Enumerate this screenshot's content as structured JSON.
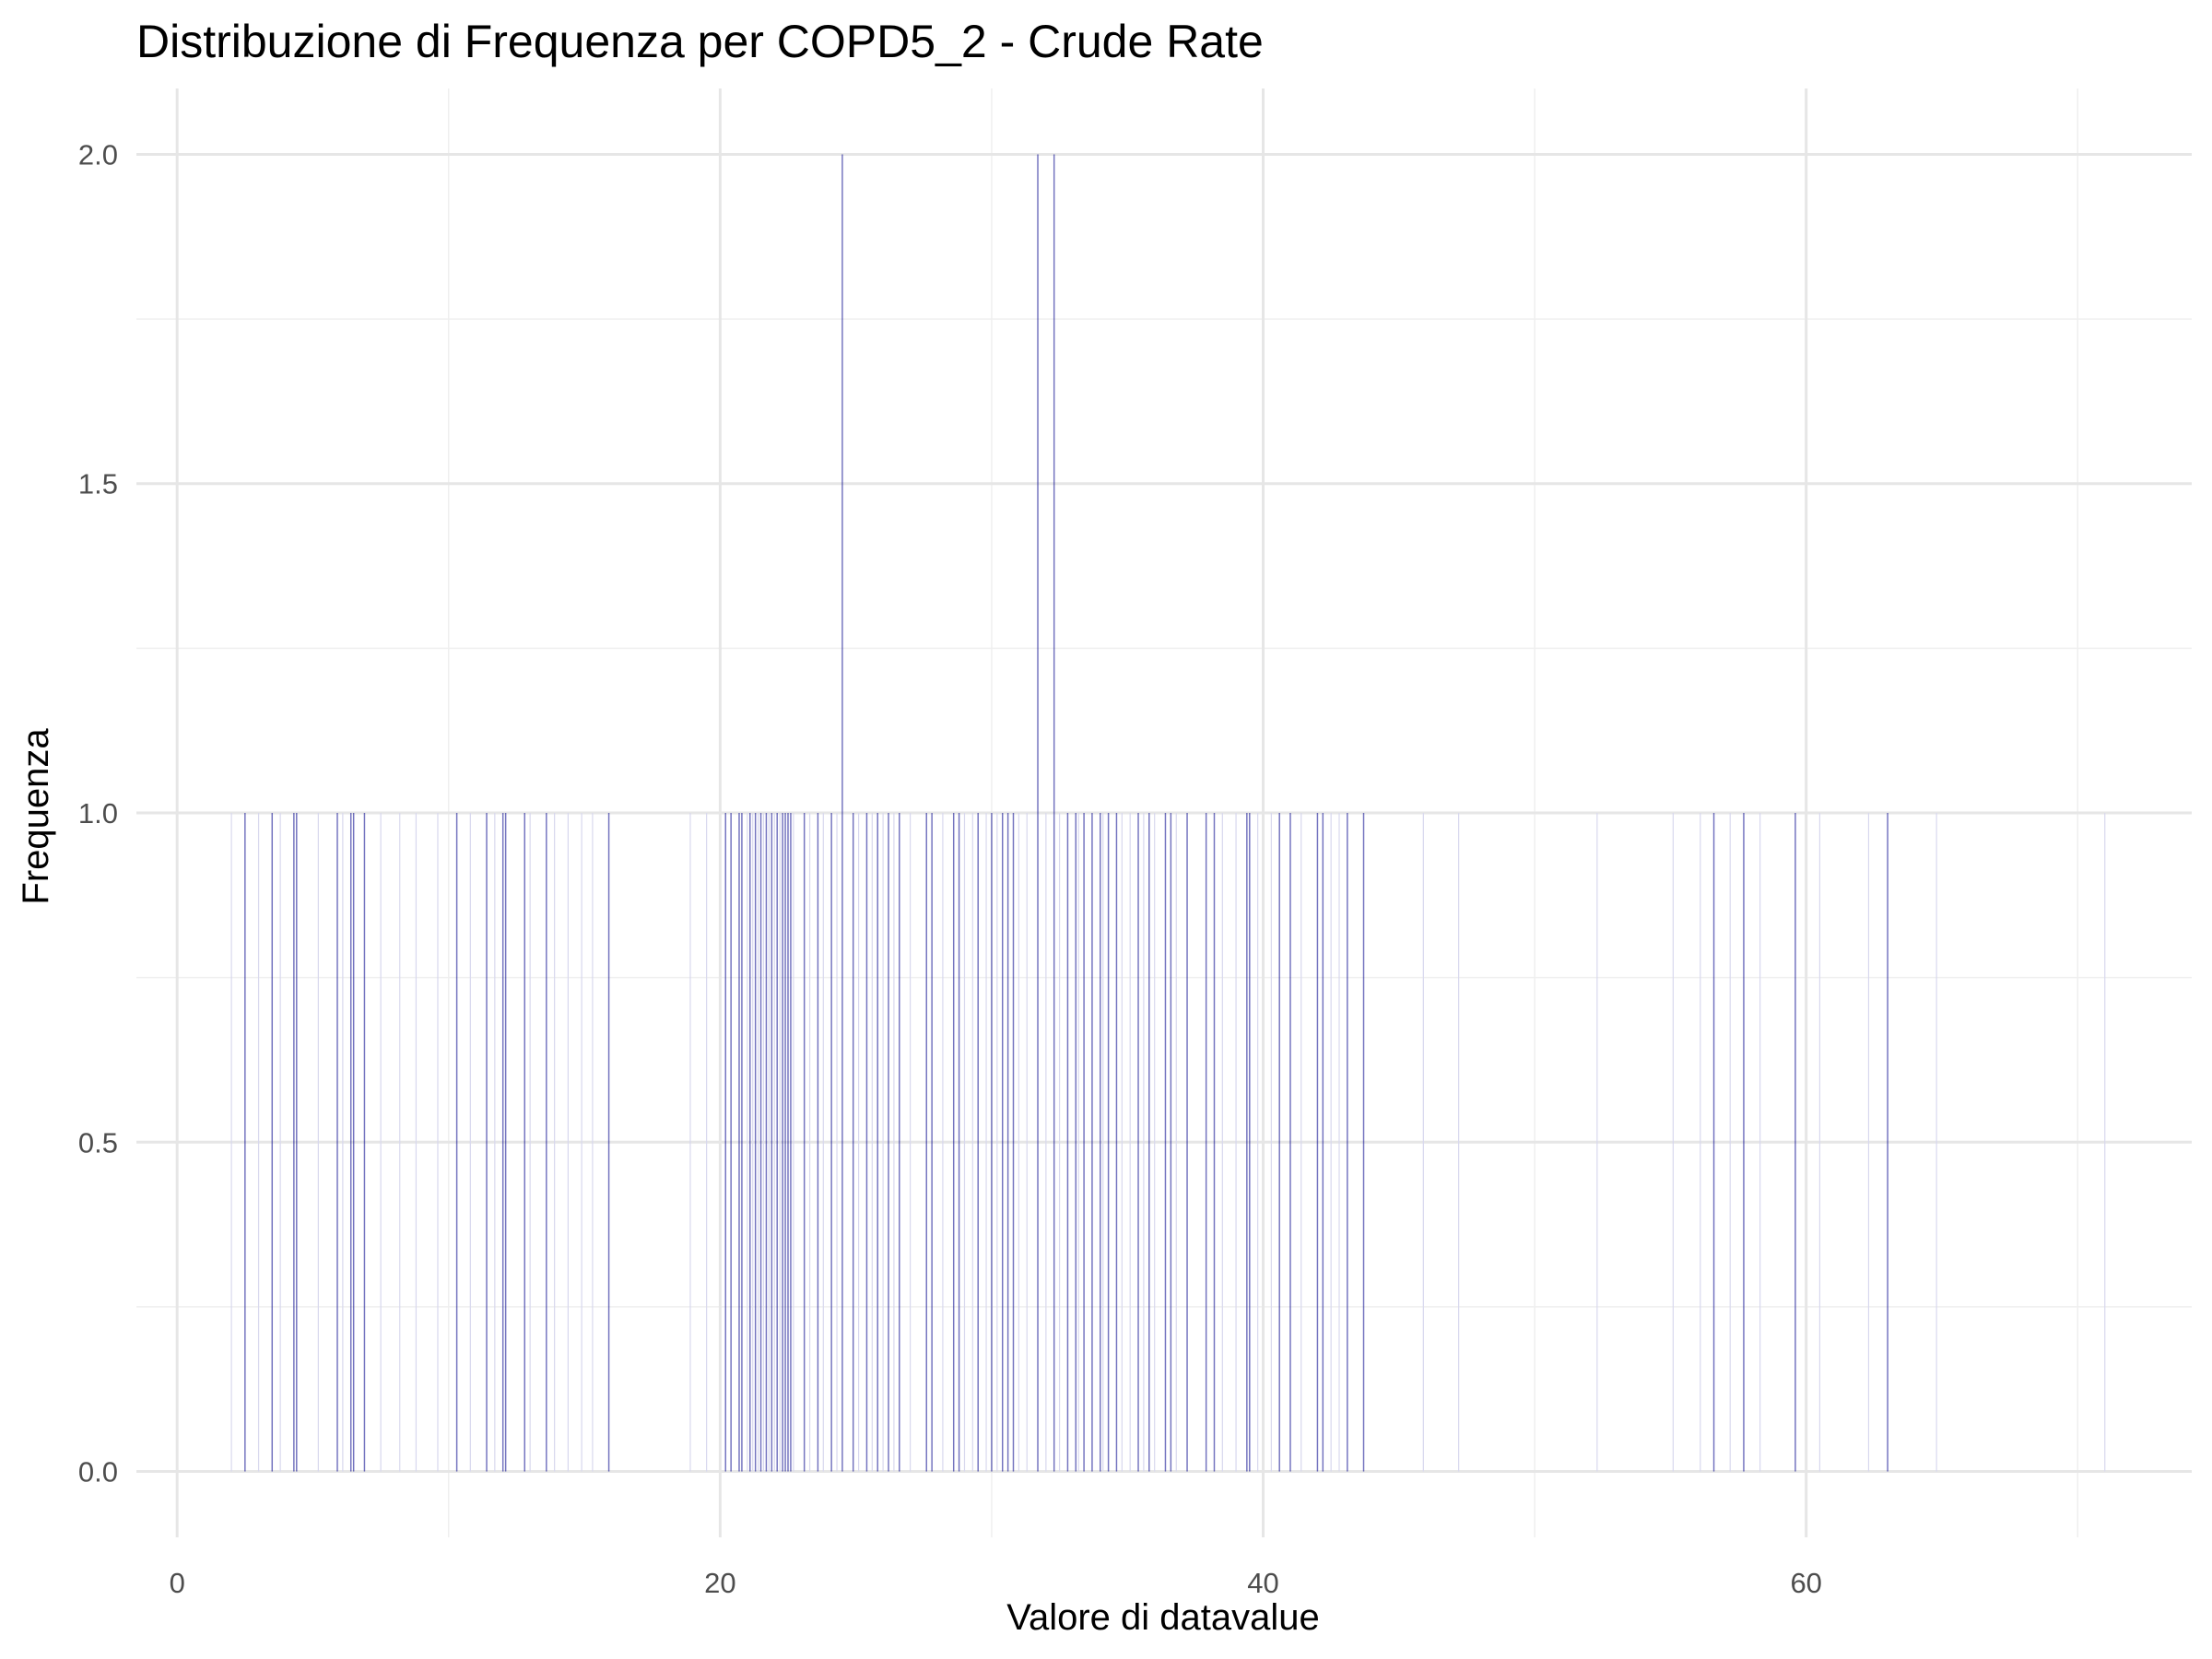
{
  "chart_data": {
    "type": "bar",
    "title": "Distribuzione di Frequenza per COPD5_2 - Crude Rate",
    "xlabel": "Valore di datavalue",
    "ylabel": "Frequenza",
    "xlim": [
      -1.5,
      74.2
    ],
    "ylim": [
      -0.1,
      2.1
    ],
    "x_ticks": [
      0,
      20,
      40,
      60
    ],
    "y_ticks": [
      0.0,
      0.5,
      1.0,
      1.5,
      2.0
    ],
    "y_tick_labels": [
      "0.0",
      "0.5",
      "1.0",
      "1.5",
      "2.0"
    ],
    "x_minor_ticks": [
      10,
      30,
      50,
      70
    ],
    "y_minor_ticks": [
      0.25,
      0.75,
      1.25,
      1.75
    ],
    "grid": true,
    "legend": "none",
    "bar_color": "#00008b",
    "bin_width": 0.05,
    "values_x": [
      2.5,
      3.5,
      4.3,
      4.4,
      5.9,
      6.4,
      6.5,
      6.9,
      10.3,
      11.4,
      12.0,
      12.1,
      12.8,
      13.6,
      15.9,
      20.2,
      20.4,
      20.7,
      20.8,
      21.1,
      21.3,
      21.5,
      21.7,
      21.9,
      22.1,
      22.3,
      22.4,
      22.5,
      22.6,
      23.1,
      23.6,
      24.1,
      24.5,
      24.9,
      25.4,
      25.8,
      26.2,
      26.6,
      27.6,
      27.8,
      28.6,
      28.8,
      29.5,
      30.0,
      30.4,
      30.6,
      30.8,
      31.7,
      32.3,
      32.8,
      33.1,
      33.4,
      33.7,
      34.0,
      34.3,
      34.6,
      35.4,
      35.8,
      36.4,
      36.6,
      37.2,
      37.9,
      38.2,
      39.4,
      39.5,
      40.6,
      41.0,
      42.0,
      42.2,
      43.1,
      43.7,
      56.6,
      57.7,
      59.6,
      63.0
    ],
    "values_y": [
      1,
      1,
      1,
      1,
      1,
      1,
      1,
      1,
      1,
      1,
      1,
      1,
      1,
      1,
      1,
      1,
      1,
      1,
      1,
      1,
      1,
      1,
      1,
      1,
      1,
      1,
      1,
      1,
      1,
      1,
      1,
      1,
      2,
      1,
      1,
      1,
      1,
      1,
      1,
      1,
      1,
      1,
      1,
      1,
      1,
      1,
      1,
      2,
      2,
      1,
      1,
      1,
      1,
      1,
      1,
      1,
      1,
      1,
      1,
      1,
      1,
      1,
      1,
      1,
      1,
      1,
      1,
      1,
      1,
      1,
      1,
      1,
      1,
      1,
      1
    ],
    "faint_x": [
      2.0,
      3.0,
      3.8,
      5.2,
      6.1,
      7.5,
      8.2,
      8.8,
      9.6,
      10.8,
      11.7,
      13.0,
      13.9,
      14.4,
      14.9,
      15.3,
      18.9,
      19.5,
      21.0,
      21.2,
      21.4,
      21.6,
      21.8,
      22.0,
      22.2,
      22.7,
      23.3,
      23.8,
      24.3,
      25.1,
      25.6,
      26.0,
      26.4,
      27.0,
      28.2,
      29.0,
      29.3,
      29.8,
      30.2,
      31.0,
      31.3,
      32.0,
      32.5,
      33.2,
      34.1,
      34.8,
      35.1,
      35.6,
      36.0,
      36.8,
      38.5,
      39.0,
      39.8,
      40.3,
      41.4,
      42.5,
      42.8,
      45.9,
      47.2,
      52.3,
      55.1,
      56.1,
      57.2,
      58.3,
      60.5,
      62.3,
      64.8,
      71.0
    ]
  }
}
